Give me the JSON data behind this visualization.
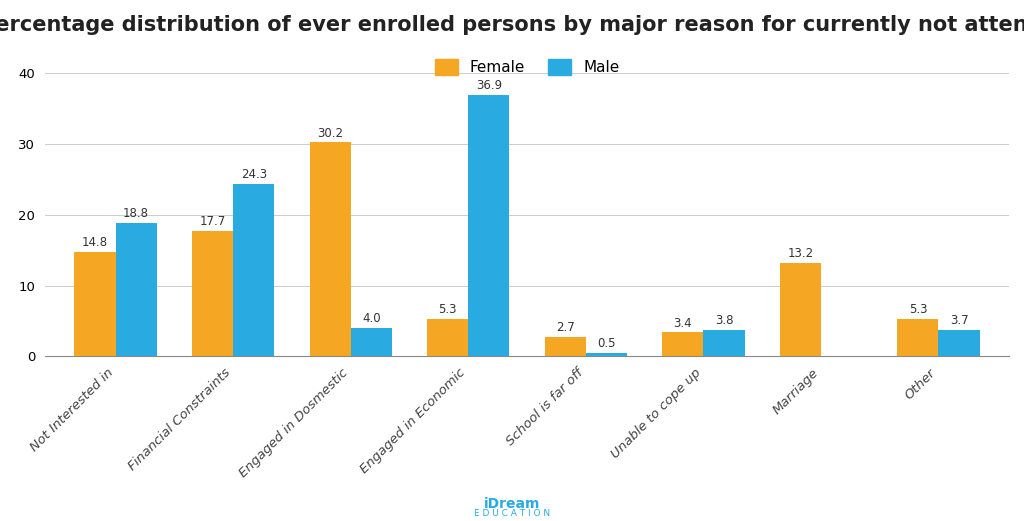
{
  "title": "Percentage distribution of ever enrolled persons by major reason for currently not attenting",
  "categories": [
    "Not Interested in",
    "Financial Constraints",
    "Engaged in Dosmestic",
    "Engaged in Economic",
    "School is far off",
    "Unable to cope up",
    "Marriage",
    "Other"
  ],
  "female_values": [
    14.8,
    17.7,
    30.2,
    5.3,
    2.7,
    3.4,
    13.2,
    5.3
  ],
  "male_values": [
    18.8,
    24.3,
    4.0,
    36.9,
    0.5,
    3.8,
    0.0,
    3.7
  ],
  "female_color": "#F5A623",
  "male_color": "#29ABE2",
  "ylim": [
    0,
    42
  ],
  "yticks": [
    0,
    10,
    20,
    30,
    40
  ],
  "background_color": "#FFFFFF",
  "grid_color": "#CCCCCC",
  "title_fontsize": 15,
  "bar_width": 0.35,
  "legend_labels": [
    "Female",
    "Male"
  ],
  "label_fontsize": 8.5,
  "tick_fontsize": 9.5,
  "footer_color": "#29ABE2"
}
